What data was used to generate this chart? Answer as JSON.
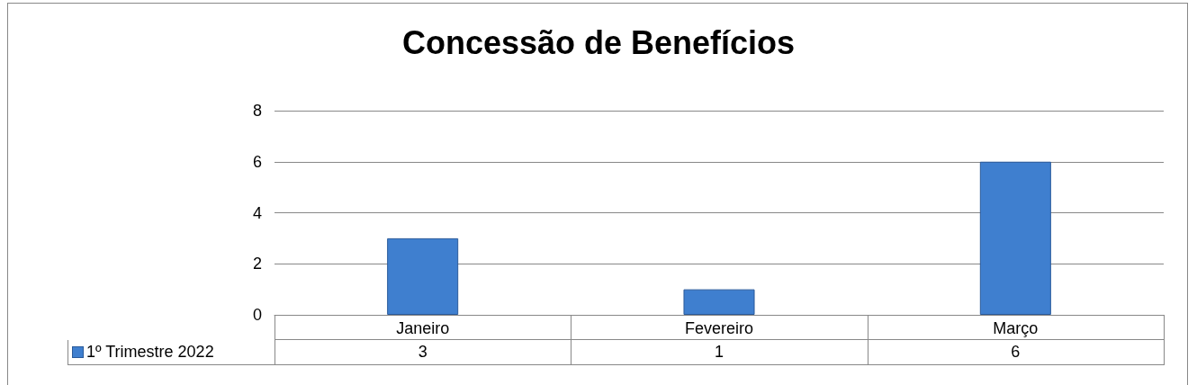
{
  "chart_data": {
    "type": "bar",
    "title": "Concessão de Benefícios",
    "categories": [
      "Janeiro",
      "Fevereiro",
      "Março"
    ],
    "series": [
      {
        "name": "1º Trimestre 2022",
        "color": "#3f7fcf",
        "values": [
          3,
          1,
          6
        ]
      }
    ],
    "ylim": [
      0,
      8
    ],
    "yticks": [
      0,
      2,
      4,
      6,
      8
    ],
    "grid": "y",
    "legend": "bottom left",
    "data_labels": true
  }
}
